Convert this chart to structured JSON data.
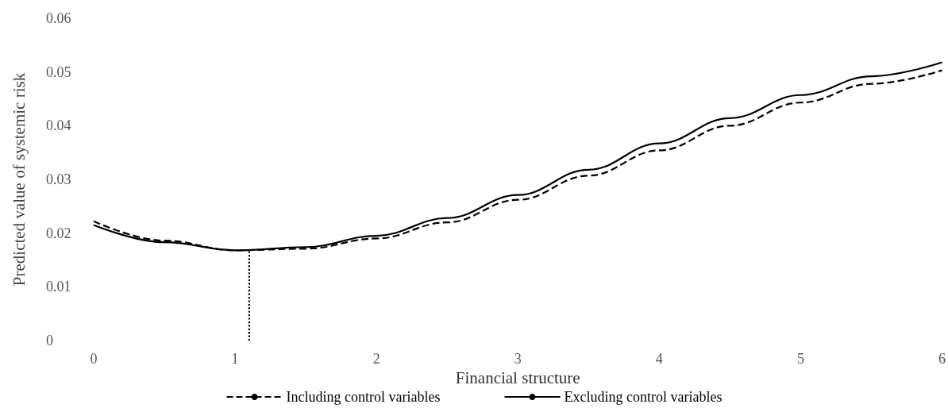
{
  "chart_data": {
    "type": "line",
    "xlabel": "Financial structure",
    "ylabel": "Predicted value of systemic risk",
    "xlim": [
      0,
      6
    ],
    "xticks": [
      0,
      1,
      2,
      3,
      4,
      5,
      6
    ],
    "ylim": [
      0,
      0.06
    ],
    "yticks": [
      0,
      0.01,
      0.02,
      0.03,
      0.04,
      0.05,
      0.06
    ],
    "grid": false,
    "legend": "bottom",
    "marker": "none",
    "x": [
      0,
      0.5,
      1,
      1.5,
      2,
      2.5,
      3,
      3.5,
      4,
      4.5,
      5,
      5.5,
      6
    ],
    "series": [
      {
        "name": "Including control variables",
        "color": "#000000",
        "line_style": "dashed",
        "values": [
          0.0222,
          0.0186,
          0.0168,
          0.0171,
          0.019,
          0.022,
          0.0262,
          0.0307,
          0.0354,
          0.04,
          0.0443,
          0.0478,
          0.0503
        ]
      },
      {
        "name": "Excluding control variables",
        "color": "#000000",
        "line_style": "solid",
        "values": [
          0.0215,
          0.0183,
          0.0168,
          0.0174,
          0.0195,
          0.0228,
          0.0271,
          0.0318,
          0.0367,
          0.0414,
          0.0457,
          0.0492,
          0.0518
        ]
      },
      {
        "color": "#000000",
        "line_style": "dotted",
        "x": [
          1.1,
          1.1
        ],
        "values": [
          0,
          0.0167
        ]
      }
    ]
  }
}
